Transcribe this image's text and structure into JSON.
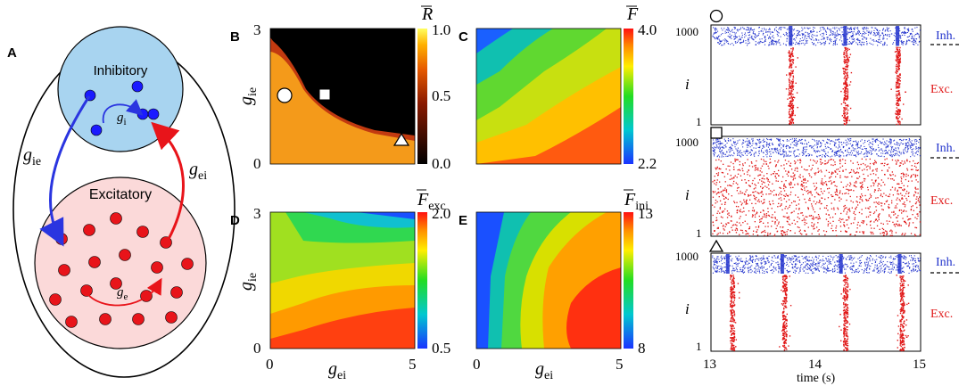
{
  "panels": {
    "A": "A",
    "B": "B",
    "C": "C",
    "D": "D",
    "E": "E"
  },
  "diagram": {
    "inhibitory_label": "Inhibitory",
    "excitatory_label": "Excitatory",
    "g_ie": "g",
    "g_ie_sub": "ie",
    "g_ei": "g",
    "g_ei_sub": "ei",
    "g_i": "g",
    "g_i_sub": "i",
    "g_e": "g",
    "g_e_sub": "e",
    "inh_color": "#1a1aff",
    "exc_color": "#e8141a",
    "arrow_ie_color": "#2a35e0",
    "arrow_ei_color": "#e8141a"
  },
  "heatmaps": {
    "ylabel": "g",
    "ylabel_sub": "ie",
    "xlabel": "g",
    "xlabel_sub": "ei",
    "y_top": "3",
    "y_bottom": "0",
    "x_left": "0",
    "x_right": "5",
    "B": {
      "cbar_title": "R",
      "cbar_max": "1.0",
      "cbar_mid": "0.5",
      "cbar_min": "0.0"
    },
    "C": {
      "cbar_title": "F",
      "cbar_max": "4.0",
      "cbar_min": "2.2"
    },
    "D": {
      "cbar_title": "F",
      "cbar_title_sub": "exc",
      "cbar_max": "2.0",
      "cbar_min": "0.5"
    },
    "E": {
      "cbar_title": "F",
      "cbar_title_sub": "ini",
      "cbar_max": "13",
      "cbar_min": "8"
    }
  },
  "raster": {
    "y_top": "1000",
    "y_bottom": "1",
    "ylabel": "i",
    "inh_label": "Inh.",
    "exc_label": "Exc.",
    "x_ticks": [
      "13",
      "14",
      "15"
    ],
    "xlabel": "time (s)",
    "inh_color": "#2233cc",
    "exc_color": "#e01818"
  }
}
